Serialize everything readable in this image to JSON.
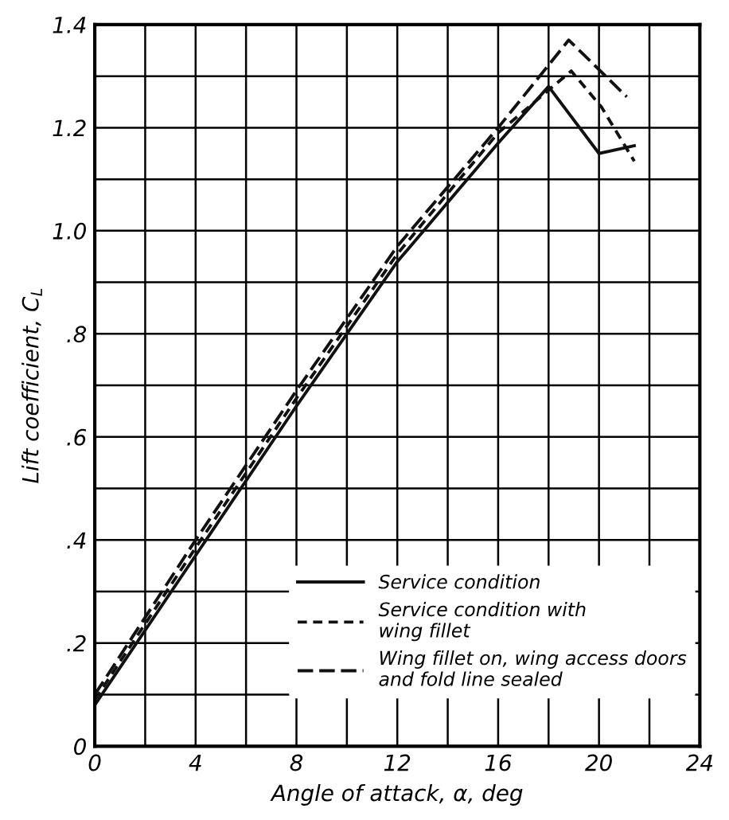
{
  "chart_data": {
    "type": "line",
    "xlabel": "Angle of attack, α, deg",
    "ylabel": "Lift coefficient, C$_{L}$",
    "series": [
      {
        "name": "Service condition",
        "color": "#111111",
        "line_style": "solid",
        "x": [
          0,
          4,
          8,
          12,
          16,
          18,
          20,
          21.4
        ],
        "values": [
          0.08,
          0.37,
          0.66,
          0.94,
          1.17,
          1.28,
          1.15,
          1.165
        ]
      },
      {
        "name": "Service condition with\nwing fillet",
        "color": "#111111",
        "line_style": "dotted",
        "x": [
          0,
          4,
          8,
          12,
          16,
          18.9,
          20.1,
          21.4
        ],
        "values": [
          0.09,
          0.385,
          0.675,
          0.955,
          1.19,
          1.31,
          1.24,
          1.135
        ]
      },
      {
        "name": "Wing fillet on, wing access doors\nand fold line sealed",
        "color": "#111111",
        "line_style": "dashed",
        "x": [
          0,
          4,
          8,
          12,
          16,
          18.8,
          21.1
        ],
        "values": [
          0.1,
          0.4,
          0.69,
          0.97,
          1.2,
          1.37,
          1.26
        ]
      }
    ],
    "xlim": [
      0,
      24
    ],
    "ylim": [
      0,
      1.4
    ],
    "xticks": [
      0,
      {
        "value": 2,
        "label": null
      },
      4,
      {
        "value": 6,
        "label": null
      },
      8,
      {
        "value": 10,
        "label": null
      },
      12,
      {
        "value": 14,
        "label": null
      },
      16,
      {
        "value": 18,
        "label": null
      },
      20,
      {
        "value": 22,
        "label": null
      },
      24
    ],
    "yticks": [
      0,
      {
        "value": 0.1,
        "label": null
      },
      {
        "value": 0.2,
        "label": ".2"
      },
      {
        "value": 0.3,
        "label": null
      },
      {
        "value": 0.4,
        "label": ".4"
      },
      {
        "value": 0.5,
        "label": null
      },
      {
        "value": 0.6,
        "label": ".6"
      },
      {
        "value": 0.7,
        "label": null
      },
      {
        "value": 0.8,
        "label": ".8"
      },
      {
        "value": 0.9,
        "label": null
      },
      {
        "value": 1.0,
        "label": "1.0"
      },
      {
        "value": 1.1,
        "label": null
      },
      1.2,
      {
        "value": 1.3,
        "label": null
      },
      1.4
    ],
    "grid": true,
    "legend": "bottom right"
  }
}
